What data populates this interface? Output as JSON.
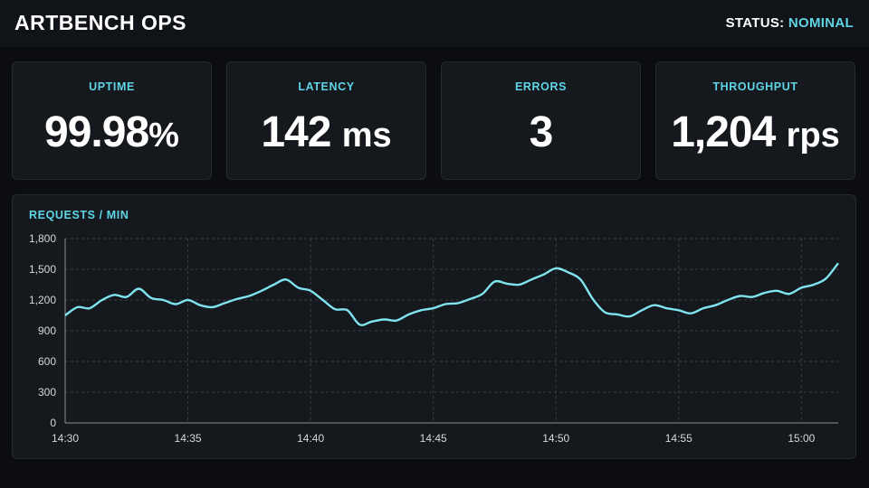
{
  "header": {
    "title": "ARTBENCH OPS",
    "status_label": "STATUS:",
    "status_value": "NOMINAL"
  },
  "colors": {
    "accent": "#5fd4e6",
    "background": "#0b0d10",
    "card": "#15181c"
  },
  "metrics": [
    {
      "label": "UPTIME",
      "value": "99.98",
      "unit": "%"
    },
    {
      "label": "LATENCY",
      "value": "142",
      "unit": "ms"
    },
    {
      "label": "ERRORS",
      "value": "3",
      "unit": ""
    },
    {
      "label": "THROUGHPUT",
      "value": "1,204",
      "unit": "rps"
    }
  ],
  "chart_data": {
    "type": "line",
    "title": "REQUESTS / MIN",
    "xlabel": "",
    "ylabel": "",
    "x_range_minutes": [
      "14:30",
      "15:01.5"
    ],
    "ylim": [
      0,
      1800
    ],
    "y_ticks": [
      0,
      300,
      600,
      900,
      1200,
      1500,
      1800
    ],
    "y_tick_labels": [
      "0",
      "300",
      "600",
      "900",
      "1,200",
      "1,500",
      "1,800"
    ],
    "x_tick_labels": [
      "14:30",
      "14:35",
      "14:40",
      "14:45",
      "14:50",
      "14:55",
      "15:00"
    ],
    "grid": true,
    "line_color": "#7fe3f0",
    "series": [
      {
        "x": [
          "14:30",
          "14:30.5",
          "14:31",
          "14:31.5",
          "14:32",
          "14:32.5",
          "14:33",
          "14:33.5",
          "14:34",
          "14:34.5",
          "14:35",
          "14:35.5",
          "14:36",
          "14:36.5",
          "14:37",
          "14:37.5",
          "14:38",
          "14:38.5",
          "14:39",
          "14:39.5",
          "14:40",
          "14:40.5",
          "14:41",
          "14:41.5",
          "14:42",
          "14:42.5",
          "14:43",
          "14:43.5",
          "14:44",
          "14:44.5",
          "14:45",
          "14:45.5",
          "14:46",
          "14:46.5",
          "14:47",
          "14:47.5",
          "14:48",
          "14:48.5",
          "14:49",
          "14:49.5",
          "14:50",
          "14:50.5",
          "14:51",
          "14:51.5",
          "14:52",
          "14:52.5",
          "14:53",
          "14:53.5",
          "14:54",
          "14:54.5",
          "14:55",
          "14:55.5",
          "14:56",
          "14:56.5",
          "14:57",
          "14:57.5",
          "14:58",
          "14:58.5",
          "14:59",
          "14:59.5",
          "15:00",
          "15:00.5",
          "15:01",
          "15:01.5"
        ],
        "values": [
          1050,
          1130,
          1120,
          1200,
          1250,
          1230,
          1310,
          1220,
          1200,
          1160,
          1200,
          1150,
          1130,
          1170,
          1210,
          1240,
          1290,
          1350,
          1400,
          1320,
          1290,
          1200,
          1110,
          1100,
          960,
          990,
          1010,
          1000,
          1060,
          1100,
          1120,
          1160,
          1170,
          1210,
          1260,
          1380,
          1360,
          1350,
          1400,
          1450,
          1510,
          1470,
          1400,
          1210,
          1080,
          1060,
          1040,
          1100,
          1150,
          1120,
          1100,
          1070,
          1120,
          1150,
          1200,
          1240,
          1230,
          1270,
          1290,
          1260,
          1320,
          1350,
          1410,
          1560
        ]
      }
    ]
  }
}
